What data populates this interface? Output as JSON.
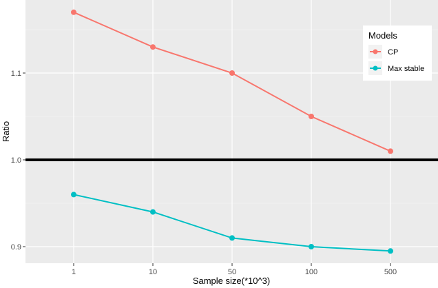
{
  "chart_data": {
    "type": "line",
    "title": "",
    "xlabel": "Sample size(*10^3)",
    "ylabel": "Ratio",
    "categories": [
      "1",
      "10",
      "50",
      "100",
      "500"
    ],
    "series": [
      {
        "name": "CP",
        "color": "#F8766D",
        "values": [
          1.17,
          1.13,
          1.1,
          1.05,
          1.01
        ]
      },
      {
        "name": "Max stable",
        "color": "#00BFC4",
        "values": [
          0.96,
          0.94,
          0.91,
          0.9,
          0.895
        ]
      }
    ],
    "yticks": [
      "0.9",
      "1.0",
      "1.1"
    ],
    "ylim": [
      0.88,
      1.183
    ],
    "reference_line": {
      "y": 1.0,
      "color": "#000000"
    },
    "grid": true,
    "legend": {
      "title": "Models",
      "position": "top-right-inside"
    },
    "colors": {
      "panel_bg": "#EBEBEB",
      "grid": "#FFFFFF"
    }
  }
}
